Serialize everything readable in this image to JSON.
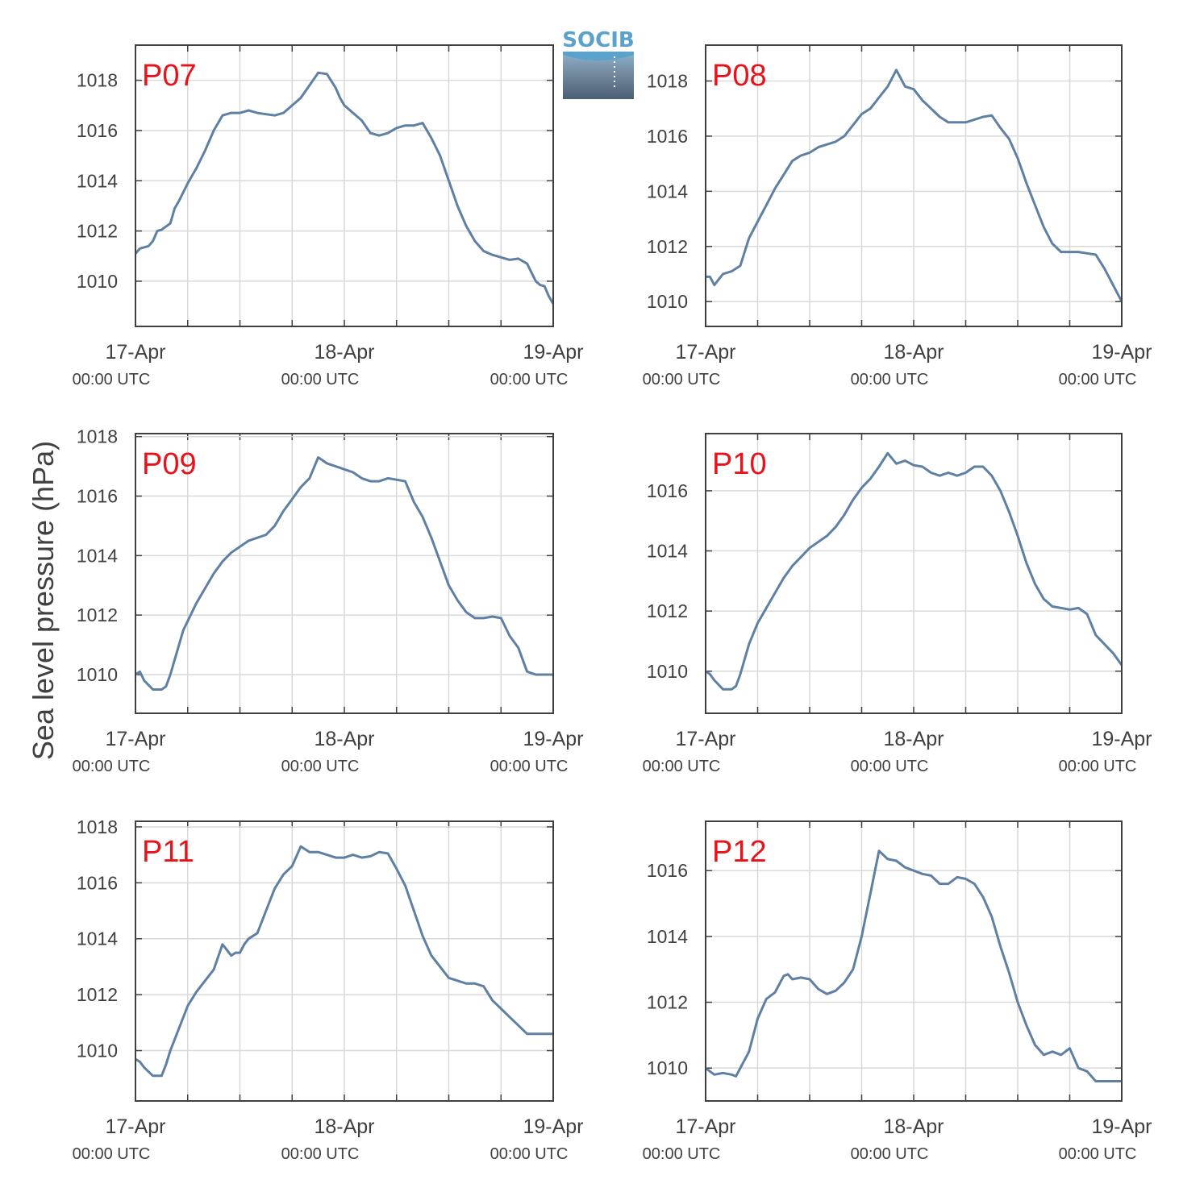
{
  "figure": {
    "ylabel": "Sea level pressure (hPa)",
    "logo_text": "SOCIB"
  },
  "chart_data": [
    {
      "type": "line",
      "label": "P07",
      "xlabel": "",
      "ylabel": "Sea level pressure (hPa)",
      "xlim": [
        0,
        48
      ],
      "ylim": [
        1008.2,
        1019.4
      ],
      "yticks": [
        1010,
        1012,
        1014,
        1016,
        1018
      ],
      "xtick_labels": [
        {
          "at": 0,
          "line1": "17-Apr",
          "line2": "00:00 UTC"
        },
        {
          "at": 24,
          "line1": "18-Apr",
          "line2": "00:00 UTC"
        },
        {
          "at": 48,
          "line1": "19-Apr",
          "line2": "00:00 UTC"
        }
      ],
      "grid": true,
      "x": [
        0,
        0.5,
        1.5,
        2,
        2.5,
        3,
        4,
        4.5,
        5,
        6,
        7,
        8,
        9,
        10,
        11,
        12,
        13,
        14,
        15,
        16,
        17,
        18,
        19,
        20,
        21,
        22,
        23,
        23.5,
        24,
        25,
        26,
        27,
        28,
        29,
        30,
        31,
        32,
        33,
        34,
        35,
        36,
        37,
        38,
        39,
        40,
        41,
        42,
        43,
        44,
        45,
        46,
        46.5,
        47,
        47.5,
        48
      ],
      "y": [
        1011.1,
        1011.3,
        1011.4,
        1011.6,
        1012.0,
        1012.05,
        1012.3,
        1012.9,
        1013.2,
        1013.9,
        1014.5,
        1015.2,
        1016.0,
        1016.6,
        1016.7,
        1016.7,
        1016.8,
        1016.7,
        1016.65,
        1016.6,
        1016.7,
        1017.0,
        1017.3,
        1017.8,
        1018.3,
        1018.25,
        1017.7,
        1017.3,
        1017.0,
        1016.7,
        1016.4,
        1015.9,
        1015.8,
        1015.9,
        1016.1,
        1016.2,
        1016.2,
        1016.3,
        1015.7,
        1015.0,
        1014.0,
        1013.0,
        1012.2,
        1011.6,
        1011.2,
        1011.05,
        1010.95,
        1010.85,
        1010.9,
        1010.7,
        1010.0,
        1009.85,
        1009.8,
        1009.4,
        1009.1
      ]
    },
    {
      "type": "line",
      "label": "P08",
      "xlabel": "",
      "ylabel": "Sea level pressure (hPa)",
      "xlim": [
        0,
        48
      ],
      "ylim": [
        1009.1,
        1019.3
      ],
      "yticks": [
        1010,
        1012,
        1014,
        1016,
        1018
      ],
      "xtick_labels": [
        {
          "at": 0,
          "line1": "17-Apr",
          "line2": "00:00 UTC"
        },
        {
          "at": 24,
          "line1": "18-Apr",
          "line2": "00:00 UTC"
        },
        {
          "at": 48,
          "line1": "19-Apr",
          "line2": "00:00 UTC"
        }
      ],
      "grid": true,
      "x": [
        0,
        0.5,
        1,
        1.5,
        2,
        3,
        4,
        4.5,
        5,
        6,
        7,
        8,
        9,
        10,
        11,
        12,
        13,
        14,
        15,
        16,
        17,
        18,
        19,
        20,
        21,
        22,
        23,
        24,
        25,
        26,
        27,
        28,
        29,
        30,
        31,
        32,
        33,
        34,
        35,
        36,
        37,
        38,
        39,
        40,
        41,
        42,
        43,
        44,
        45,
        46,
        47,
        48
      ],
      "y": [
        1010.9,
        1010.9,
        1010.6,
        1010.8,
        1011.0,
        1011.1,
        1011.3,
        1011.8,
        1012.3,
        1012.9,
        1013.5,
        1014.1,
        1014.6,
        1015.1,
        1015.3,
        1015.4,
        1015.6,
        1015.7,
        1015.8,
        1016.0,
        1016.4,
        1016.8,
        1017.0,
        1017.4,
        1017.8,
        1018.4,
        1017.8,
        1017.7,
        1017.3,
        1017.0,
        1016.7,
        1016.5,
        1016.5,
        1016.5,
        1016.6,
        1016.7,
        1016.75,
        1016.3,
        1015.9,
        1015.2,
        1014.3,
        1013.5,
        1012.7,
        1012.1,
        1011.8,
        1011.8,
        1011.8,
        1011.75,
        1011.7,
        1011.2,
        1010.6,
        1010.0
      ]
    },
    {
      "type": "line",
      "label": "P09",
      "xlabel": "",
      "ylabel": "Sea level pressure (hPa)",
      "xlim": [
        0,
        48
      ],
      "ylim": [
        1008.7,
        1018.1
      ],
      "yticks": [
        1010,
        1012,
        1014,
        1016,
        1018
      ],
      "xtick_labels": [
        {
          "at": 0,
          "line1": "17-Apr",
          "line2": "00:00 UTC"
        },
        {
          "at": 24,
          "line1": "18-Apr",
          "line2": "00:00 UTC"
        },
        {
          "at": 48,
          "line1": "19-Apr",
          "line2": "00:00 UTC"
        }
      ],
      "grid": true,
      "x": [
        0,
        0.5,
        1,
        2,
        3,
        3.5,
        4,
        5,
        5.5,
        6,
        7,
        8,
        9,
        10,
        11,
        12,
        13,
        14,
        15,
        16,
        17,
        18,
        19,
        20,
        21,
        22,
        23,
        24,
        25,
        26,
        27,
        28,
        29,
        30,
        31,
        32,
        33,
        34,
        35,
        36,
        37,
        38,
        39,
        40,
        41,
        42,
        43,
        44,
        45,
        46,
        47,
        48
      ],
      "y": [
        1010.0,
        1010.1,
        1009.8,
        1009.5,
        1009.5,
        1009.6,
        1010.0,
        1011.0,
        1011.5,
        1011.8,
        1012.4,
        1012.9,
        1013.4,
        1013.8,
        1014.1,
        1014.3,
        1014.5,
        1014.6,
        1014.7,
        1015.0,
        1015.5,
        1015.9,
        1016.3,
        1016.6,
        1017.3,
        1017.1,
        1017.0,
        1016.9,
        1016.8,
        1016.6,
        1016.5,
        1016.5,
        1016.6,
        1016.55,
        1016.5,
        1015.8,
        1015.3,
        1014.6,
        1013.8,
        1013.0,
        1012.5,
        1012.1,
        1011.9,
        1011.9,
        1011.95,
        1011.9,
        1011.3,
        1010.9,
        1010.1,
        1010.0,
        1010.0,
        1010.0
      ]
    },
    {
      "type": "line",
      "label": "P10",
      "xlabel": "",
      "ylabel": "Sea level pressure (hPa)",
      "xlim": [
        0,
        48
      ],
      "ylim": [
        1008.6,
        1017.9
      ],
      "yticks": [
        1010,
        1012,
        1014,
        1016
      ],
      "xtick_labels": [
        {
          "at": 0,
          "line1": "17-Apr",
          "line2": "00:00 UTC"
        },
        {
          "at": 24,
          "line1": "18-Apr",
          "line2": "00:00 UTC"
        },
        {
          "at": 48,
          "line1": "19-Apr",
          "line2": "00:00 UTC"
        }
      ],
      "grid": true,
      "x": [
        0,
        0.5,
        1,
        2,
        3,
        3.5,
        4,
        5,
        6,
        7,
        8,
        9,
        10,
        11,
        12,
        13,
        14,
        15,
        16,
        17,
        18,
        19,
        20,
        21,
        22,
        23,
        24,
        25,
        26,
        27,
        28,
        29,
        30,
        31,
        32,
        33,
        34,
        35,
        36,
        37,
        38,
        39,
        40,
        41,
        42,
        43,
        44,
        45,
        46,
        47,
        48
      ],
      "y": [
        1010.0,
        1009.9,
        1009.7,
        1009.4,
        1009.4,
        1009.5,
        1009.9,
        1010.9,
        1011.6,
        1012.1,
        1012.6,
        1013.1,
        1013.5,
        1013.8,
        1014.1,
        1014.3,
        1014.5,
        1014.8,
        1015.2,
        1015.7,
        1016.1,
        1016.4,
        1016.8,
        1017.25,
        1016.9,
        1017.0,
        1016.85,
        1016.8,
        1016.6,
        1016.5,
        1016.6,
        1016.5,
        1016.6,
        1016.8,
        1016.8,
        1016.5,
        1016.0,
        1015.3,
        1014.5,
        1013.6,
        1012.9,
        1012.4,
        1012.15,
        1012.1,
        1012.05,
        1012.1,
        1011.9,
        1011.2,
        1010.9,
        1010.6,
        1010.2
      ]
    },
    {
      "type": "line",
      "label": "P11",
      "xlabel": "",
      "ylabel": "Sea level pressure (hPa)",
      "xlim": [
        0,
        48
      ],
      "ylim": [
        1008.2,
        1018.2
      ],
      "yticks": [
        1010,
        1012,
        1014,
        1016,
        1018
      ],
      "xtick_labels": [
        {
          "at": 0,
          "line1": "17-Apr",
          "line2": "00:00 UTC"
        },
        {
          "at": 24,
          "line1": "18-Apr",
          "line2": "00:00 UTC"
        },
        {
          "at": 48,
          "line1": "19-Apr",
          "line2": "00:00 UTC"
        }
      ],
      "grid": true,
      "x": [
        0,
        0.5,
        1,
        2,
        2.5,
        3,
        3.5,
        4,
        5,
        6,
        7,
        8,
        9,
        10,
        10.5,
        11,
        11.5,
        12,
        12.5,
        13,
        14,
        15,
        16,
        17,
        18,
        19,
        20,
        21,
        22,
        23,
        24,
        25,
        26,
        27,
        28,
        29,
        30,
        31,
        32,
        33,
        34,
        35,
        36,
        37,
        38,
        39,
        40,
        41,
        42,
        43,
        44,
        45,
        46,
        47,
        48
      ],
      "y": [
        1009.7,
        1009.6,
        1009.4,
        1009.1,
        1009.1,
        1009.1,
        1009.5,
        1010.0,
        1010.8,
        1011.6,
        1012.1,
        1012.5,
        1012.9,
        1013.8,
        1013.6,
        1013.4,
        1013.5,
        1013.5,
        1013.8,
        1014.0,
        1014.2,
        1015.0,
        1015.8,
        1016.3,
        1016.6,
        1017.3,
        1017.1,
        1017.1,
        1017.0,
        1016.9,
        1016.9,
        1017.0,
        1016.9,
        1016.95,
        1017.1,
        1017.05,
        1016.5,
        1015.9,
        1015.0,
        1014.1,
        1013.4,
        1013.0,
        1012.6,
        1012.5,
        1012.4,
        1012.4,
        1012.3,
        1011.8,
        1011.5,
        1011.2,
        1010.9,
        1010.6,
        1010.6,
        1010.6,
        1010.6
      ]
    },
    {
      "type": "line",
      "label": "P12",
      "xlabel": "",
      "ylabel": "Sea level pressure (hPa)",
      "xlim": [
        0,
        48
      ],
      "ylim": [
        1009.0,
        1017.5
      ],
      "yticks": [
        1010,
        1012,
        1014,
        1016
      ],
      "xtick_labels": [
        {
          "at": 0,
          "line1": "17-Apr",
          "line2": "00:00 UTC"
        },
        {
          "at": 24,
          "line1": "18-Apr",
          "line2": "00:00 UTC"
        },
        {
          "at": 48,
          "line1": "19-Apr",
          "line2": "00:00 UTC"
        }
      ],
      "grid": true,
      "x": [
        0,
        0.5,
        1,
        2,
        3,
        3.5,
        4,
        5,
        6,
        7,
        8,
        9,
        9.5,
        10,
        11,
        12,
        13,
        14,
        15,
        16,
        17,
        18,
        19,
        20,
        21,
        22,
        23,
        24,
        25,
        26,
        27,
        28,
        29,
        30,
        31,
        32,
        33,
        34,
        35,
        36,
        37,
        38,
        39,
        40,
        41,
        42,
        43,
        44,
        45,
        46,
        47,
        48
      ],
      "y": [
        1010.0,
        1009.9,
        1009.8,
        1009.85,
        1009.8,
        1009.75,
        1010.0,
        1010.5,
        1011.5,
        1012.1,
        1012.3,
        1012.8,
        1012.85,
        1012.7,
        1012.75,
        1012.7,
        1012.4,
        1012.25,
        1012.35,
        1012.6,
        1013.0,
        1014.0,
        1015.3,
        1016.6,
        1016.35,
        1016.3,
        1016.1,
        1016.0,
        1015.9,
        1015.85,
        1015.6,
        1015.6,
        1015.8,
        1015.75,
        1015.6,
        1015.2,
        1014.6,
        1013.7,
        1012.9,
        1012.0,
        1011.3,
        1010.7,
        1010.4,
        1010.5,
        1010.4,
        1010.6,
        1010.0,
        1009.9,
        1009.6,
        1009.6,
        1009.6,
        1009.6
      ]
    }
  ]
}
